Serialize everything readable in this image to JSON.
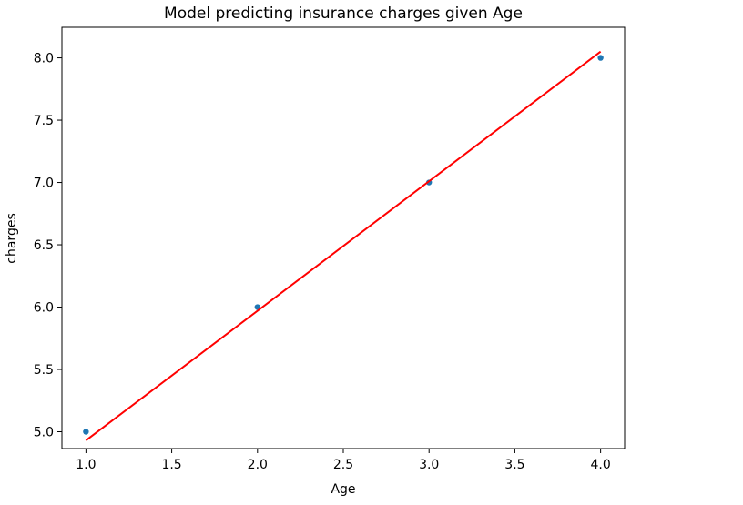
{
  "chart_data": {
    "type": "scatter",
    "title": "Model predicting insurance  charges given Age",
    "xlabel": "Age",
    "ylabel": "charges",
    "xlim": [
      0.86,
      4.14
    ],
    "ylim": [
      4.865,
      8.245
    ],
    "xticks": [
      1.0,
      1.5,
      2.0,
      2.5,
      3.0,
      3.5,
      4.0
    ],
    "xtick_labels": [
      "1.0",
      "1.5",
      "2.0",
      "2.5",
      "3.0",
      "3.5",
      "4.0"
    ],
    "yticks": [
      5.0,
      5.5,
      6.0,
      6.5,
      7.0,
      7.5,
      8.0
    ],
    "ytick_labels": [
      "5.0",
      "5.5",
      "6.0",
      "6.5",
      "7.0",
      "7.5",
      "8.0"
    ],
    "grid": false,
    "series": [
      {
        "kind": "scatter",
        "color": "#1f77b4",
        "x": [
          1,
          2,
          3,
          4
        ],
        "y": [
          5,
          6,
          7,
          8
        ]
      },
      {
        "kind": "line",
        "color": "#ff0000",
        "x": [
          1,
          4
        ],
        "y": [
          4.93,
          8.05
        ]
      }
    ]
  }
}
